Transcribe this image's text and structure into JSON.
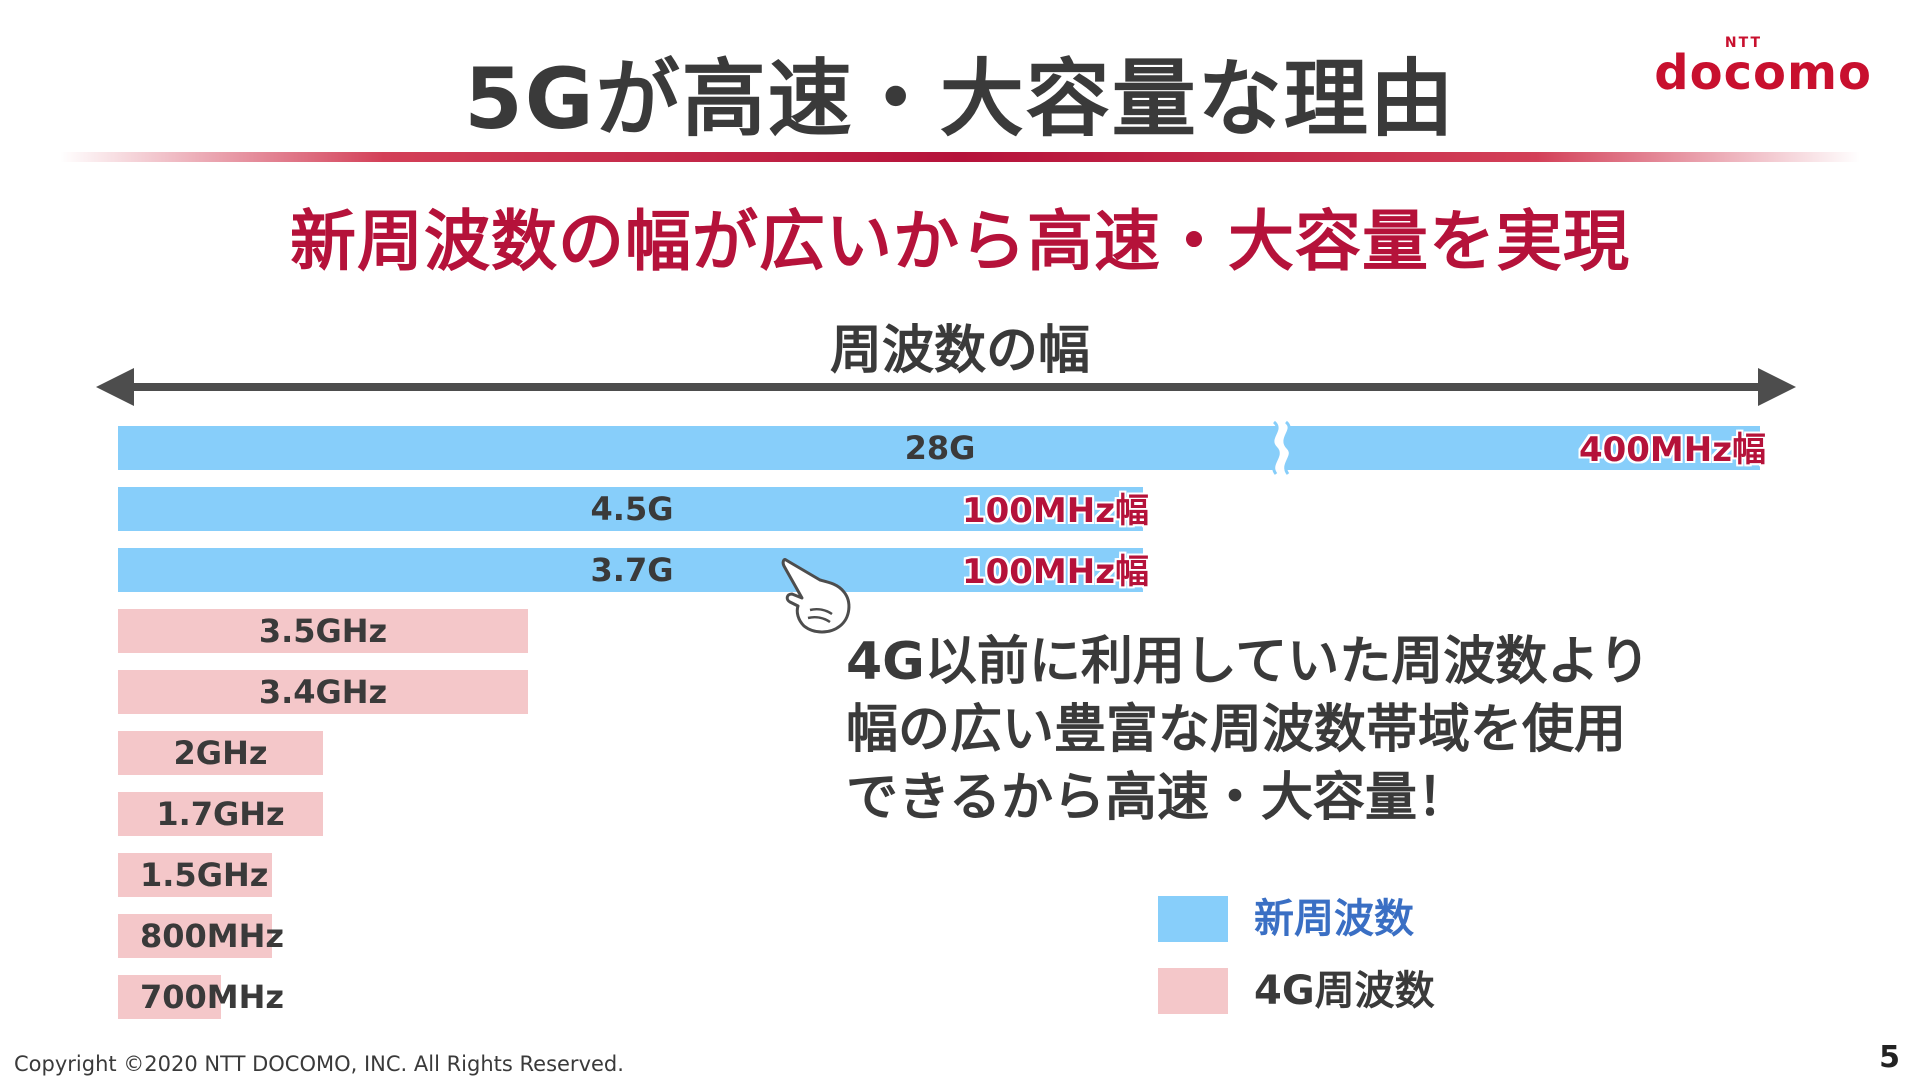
{
  "title": "5Gが高速・大容量な理由",
  "logo": {
    "small": "NTT",
    "main": "docomo"
  },
  "subtitle": "新周波数の幅が広いから高速・大容量を実現",
  "colors": {
    "new": "#87cefa",
    "old": "#f4c7c9",
    "accent": "#b5123a",
    "new_legend_text": "#3a6fc4"
  },
  "chart_data": {
    "type": "bar",
    "orientation": "horizontal",
    "xlabel": "周波数の幅",
    "series": [
      {
        "name": "新周波数",
        "color": "#87cefa"
      },
      {
        "name": "4G周波数",
        "color": "#f4c7c9"
      }
    ],
    "bars": [
      {
        "label": "28G",
        "series": "新周波数",
        "bandwidth_mhz": 400,
        "annotation": "400MHz幅",
        "axis_break": true
      },
      {
        "label": "4.5G",
        "series": "新周波数",
        "bandwidth_mhz": 100,
        "annotation": "100MHz幅"
      },
      {
        "label": "3.7G",
        "series": "新周波数",
        "bandwidth_mhz": 100,
        "annotation": "100MHz幅"
      },
      {
        "label": "3.5GHz",
        "series": "4G周波数",
        "bandwidth_mhz": 40
      },
      {
        "label": "3.4GHz",
        "series": "4G周波数",
        "bandwidth_mhz": 40
      },
      {
        "label": "2GHz",
        "series": "4G周波数",
        "bandwidth_mhz": 20
      },
      {
        "label": "1.7GHz",
        "series": "4G周波数",
        "bandwidth_mhz": 20
      },
      {
        "label": "1.5GHz",
        "series": "4G周波数",
        "bandwidth_mhz": 15
      },
      {
        "label": "800MHz",
        "series": "4G周波数",
        "bandwidth_mhz": 15
      },
      {
        "label": "700MHz",
        "series": "4G周波数",
        "bandwidth_mhz": 10
      }
    ],
    "legend": [
      "新周波数",
      "4G周波数"
    ]
  },
  "callout": {
    "lines": [
      "4G以前に利用していた周波数より",
      "幅の広い豊富な周波数帯域を使用",
      "できるから高速・大容量！"
    ]
  },
  "footer": {
    "copyright": "Copyright ©2020 NTT DOCOMO, INC. All Rights Reserved.",
    "page": "5"
  }
}
